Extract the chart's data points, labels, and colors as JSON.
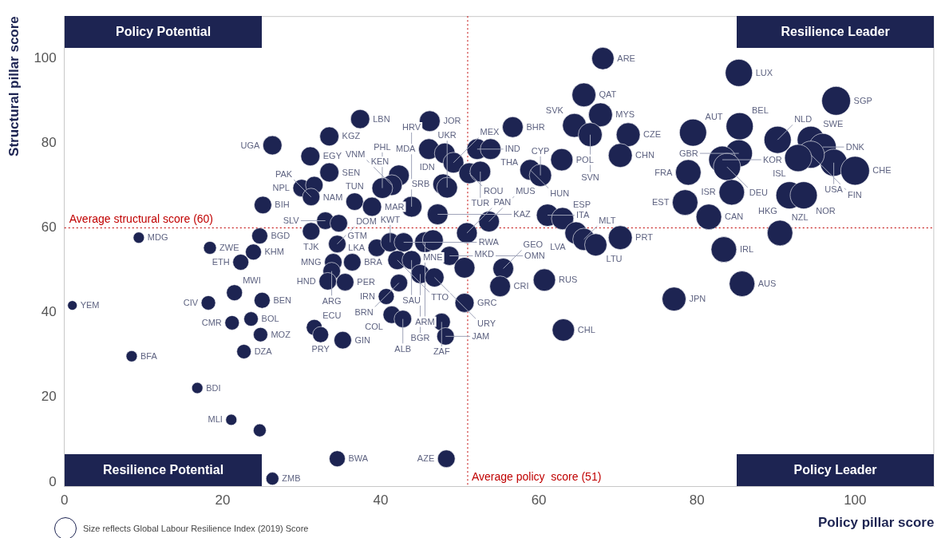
{
  "chart_data": {
    "type": "bubble",
    "xlabel": "Policy pillar score",
    "ylabel": "Structural pillar score",
    "xlim": [
      0,
      110
    ],
    "ylim": [
      -1,
      110
    ],
    "xticks": [
      0,
      20,
      40,
      60,
      80,
      100
    ],
    "yticks": [
      0,
      20,
      40,
      60,
      80,
      100
    ],
    "grid": false,
    "ref_lines": [
      {
        "axis": "y",
        "value": 60,
        "label": "Average structural score (60)",
        "color": "#c00000",
        "line_style": "dotted"
      },
      {
        "axis": "x",
        "value": 51,
        "label": "Average policy  score (51)",
        "color": "#c00000",
        "line_style": "dotted"
      }
    ],
    "series": [
      {
        "color": "#1d2452",
        "x": [
          1.0,
          9.4,
          8.5,
          16.8,
          21.1,
          24.7,
          26.3,
          18.4,
          24.7,
          23.9,
          22.3,
          25.1,
          26.3,
          21.5,
          18.2,
          25.0,
          21.2,
          23.6,
          24.8,
          22.7,
          33.5,
          31.1,
          33.5,
          30.0,
          31.6,
          31.2,
          36.7,
          37.4,
          33.0,
          34.7,
          31.2,
          34.5,
          34.0,
          33.8,
          36.4,
          33.3,
          35.5,
          39.5,
          41.2,
          42.9,
          42.1,
          43.9,
          45.0,
          46.8,
          42.3,
          40.7,
          41.4,
          42.8,
          31.6,
          32.4,
          35.2,
          34.5,
          48.3,
          47.7,
          48.2,
          50.6,
          48.7,
          50.6,
          55.5,
          55.1,
          60.7,
          63.1,
          46.2,
          46.1,
          48.1,
          49.2,
          52.2,
          53.9,
          51.2,
          52.6,
          47.9,
          48.4,
          42.3,
          41.4,
          40.2,
          38.9,
          43.9,
          47.2,
          45.6,
          46.6,
          50.9,
          53.7,
          56.7,
          58.9,
          60.2,
          61.1,
          63.0,
          64.7,
          65.7,
          67.2,
          70.3,
          62.9,
          64.5,
          65.7,
          67.8,
          66.5,
          71.3,
          70.3,
          68.1,
          85.3,
          97.6,
          85.4,
          79.5,
          90.2,
          94.4,
          95.9,
          97.3,
          94.4,
          92.8,
          100.0,
          85.3,
          83.2,
          83.8,
          78.9,
          78.5,
          81.5,
          84.4,
          91.7,
          93.5,
          90.5,
          83.4,
          85.7,
          77.1
        ],
        "values": [
          41.7,
          57.7,
          29.7,
          22.2,
          14.7,
          12.2,
          0.8,
          55.3,
          58.1,
          54.3,
          51.9,
          65.4,
          79.5,
          44.7,
          42.3,
          42.9,
          37.6,
          38.5,
          34.8,
          30.8,
          81.6,
          76.9,
          73.1,
          69.4,
          70.1,
          67.3,
          66.2,
          85.7,
          61.7,
          61.1,
          59.2,
          56.2,
          51.9,
          49.8,
          51.9,
          47.4,
          47.2,
          55.3,
          56.6,
          56.6,
          52.4,
          52.4,
          49.1,
          48.3,
          47.0,
          43.8,
          39.5,
          38.5,
          36.5,
          34.8,
          33.5,
          5.5,
          5.5,
          37.8,
          34.4,
          42.3,
          53.4,
          50.6,
          50.4,
          46.2,
          47.7,
          35.9,
          85.2,
          78.6,
          77.6,
          75.4,
          78.6,
          78.6,
          72.9,
          73.3,
          70.3,
          69.5,
          72.4,
          70.1,
          69.4,
          65.0,
          65.0,
          63.2,
          56.6,
          57.1,
          58.8,
          61.5,
          83.8,
          73.7,
          72.4,
          63.0,
          62.2,
          58.8,
          57.3,
          56.0,
          57.7,
          76.1,
          84.2,
          91.4,
          86.7,
          82.0,
          82.0,
          77.1,
          100.0,
          96.6,
          90.0,
          84.0,
          82.5,
          80.8,
          80.8,
          79.1,
          75.4,
          77.3,
          76.5,
          73.5,
          77.6,
          76.1,
          74.4,
          73.1,
          66.0,
          62.6,
          68.4,
          67.7,
          67.7,
          58.8,
          54.9,
          46.8,
          43.2
        ],
        "sizes": [
          0.11,
          0.15,
          0.15,
          0.15,
          0.15,
          0.2,
          0.2,
          0.2,
          0.31,
          0.31,
          0.31,
          0.37,
          0.44,
          0.31,
          0.25,
          0.31,
          0.25,
          0.25,
          0.25,
          0.25,
          0.44,
          0.44,
          0.44,
          0.37,
          0.37,
          0.37,
          0.37,
          0.44,
          0.37,
          0.37,
          0.37,
          0.37,
          0.37,
          0.37,
          0.37,
          0.37,
          0.37,
          0.37,
          0.44,
          0.44,
          0.44,
          0.44,
          0.44,
          0.44,
          0.37,
          0.31,
          0.37,
          0.37,
          0.31,
          0.31,
          0.37,
          0.31,
          0.37,
          0.37,
          0.37,
          0.44,
          0.44,
          0.52,
          0.52,
          0.52,
          0.6,
          0.6,
          0.52,
          0.52,
          0.52,
          0.52,
          0.52,
          0.52,
          0.52,
          0.52,
          0.52,
          0.52,
          0.52,
          0.52,
          0.52,
          0.44,
          0.52,
          0.52,
          0.52,
          0.52,
          0.52,
          0.52,
          0.52,
          0.52,
          0.6,
          0.6,
          0.6,
          0.6,
          0.6,
          0.6,
          0.69,
          0.6,
          0.69,
          0.69,
          0.69,
          0.69,
          0.69,
          0.69,
          0.6,
          0.89,
          1,
          0.89,
          0.89,
          0.89,
          0.89,
          0.89,
          0.89,
          0.89,
          0.89,
          1,
          0.89,
          0.89,
          0.89,
          0.79,
          0.79,
          0.79,
          0.79,
          0.89,
          0.89,
          0.79,
          0.79,
          0.79,
          0.69
        ]
      }
    ],
    "annotations": [
      "Policy Potential",
      "Resilience Leader",
      "Resilience Potential",
      "Policy Leader",
      "Size reflects Global Labour Resilience Index (2019) Score",
      {
        "text": "YEM",
        "x": 1.0,
        "y": 41.7
      },
      {
        "text": "MDG",
        "x": 9.4,
        "y": 57.7
      },
      {
        "text": "BFA",
        "x": 8.5,
        "y": 29.7
      },
      {
        "text": "BDI",
        "x": 16.8,
        "y": 22.2
      },
      {
        "text": "MLI",
        "x": 21.1,
        "y": 14.7
      },
      {
        "text": "ZMB",
        "x": 26.3,
        "y": 0.8
      },
      {
        "text": "ZWE",
        "x": 18.4,
        "y": 55.3
      },
      {
        "text": "BGD",
        "x": 24.7,
        "y": 58.1
      },
      {
        "text": "KHM",
        "x": 23.9,
        "y": 54.3
      },
      {
        "text": "ETH",
        "x": 22.3,
        "y": 51.9
      },
      {
        "text": "BIH",
        "x": 25.1,
        "y": 65.4
      },
      {
        "text": "UGA",
        "x": 26.3,
        "y": 79.5
      },
      {
        "text": "MWI",
        "x": 21.5,
        "y": 44.7
      },
      {
        "text": "CIV",
        "x": 18.2,
        "y": 42.3
      },
      {
        "text": "BEN",
        "x": 25.0,
        "y": 42.9
      },
      {
        "text": "CMR",
        "x": 21.2,
        "y": 37.6
      },
      {
        "text": "BOL",
        "x": 23.6,
        "y": 38.5
      },
      {
        "text": "MOZ",
        "x": 24.8,
        "y": 34.8
      },
      {
        "text": "DZA",
        "x": 22.7,
        "y": 30.8
      },
      {
        "text": "KGZ",
        "x": 33.5,
        "y": 81.6
      },
      {
        "text": "EGY",
        "x": 31.1,
        "y": 76.9
      },
      {
        "text": "SEN",
        "x": 33.5,
        "y": 73.1
      },
      {
        "text": "NPL",
        "x": 30.0,
        "y": 69.4
      },
      {
        "text": "NAM",
        "x": 31.6,
        "y": 70.1
      },
      {
        "text": "PAK",
        "x": 31.2,
        "y": 67.3
      },
      {
        "text": "TUN",
        "x": 36.7,
        "y": 66.2
      },
      {
        "text": "LBN",
        "x": 37.4,
        "y": 85.7
      },
      {
        "text": "SLV",
        "x": 33.0,
        "y": 61.7
      },
      {
        "text": "GTM",
        "x": 34.7,
        "y": 61.1
      },
      {
        "text": "TJK",
        "x": 31.2,
        "y": 59.2
      },
      {
        "text": "DOM",
        "x": 34.5,
        "y": 56.2
      },
      {
        "text": "MNG",
        "x": 34.0,
        "y": 51.9
      },
      {
        "text": "ARG",
        "x": 33.8,
        "y": 49.8
      },
      {
        "text": "BRA",
        "x": 36.4,
        "y": 51.9
      },
      {
        "text": "HND",
        "x": 33.3,
        "y": 47.4
      },
      {
        "text": "PER",
        "x": 35.5,
        "y": 47.2
      },
      {
        "text": "LKA",
        "x": 39.5,
        "y": 55.3
      },
      {
        "text": "KWT",
        "x": 41.2,
        "y": 56.6
      },
      {
        "text": "RWA",
        "x": 42.9,
        "y": 56.6
      },
      {
        "text": "TTO",
        "x": 42.1,
        "y": 52.4
      },
      {
        "text": "SAU",
        "x": 43.9,
        "y": 52.4
      },
      {
        "text": "BGR",
        "x": 45.0,
        "y": 49.1
      },
      {
        "text": "URY",
        "x": 46.8,
        "y": 48.3
      },
      {
        "text": "BRN",
        "x": 42.3,
        "y": 47.0
      },
      {
        "text": "IRN",
        "x": 40.7,
        "y": 43.8
      },
      {
        "text": "COL",
        "x": 41.4,
        "y": 39.5
      },
      {
        "text": "ALB",
        "x": 42.8,
        "y": 38.5
      },
      {
        "text": "ECU",
        "x": 31.6,
        "y": 36.5
      },
      {
        "text": "PRY",
        "x": 32.4,
        "y": 34.8
      },
      {
        "text": "GIN",
        "x": 35.2,
        "y": 33.5
      },
      {
        "text": "BWA",
        "x": 34.5,
        "y": 5.5
      },
      {
        "text": "AZE",
        "x": 48.3,
        "y": 5.5
      },
      {
        "text": "ZAF",
        "x": 47.7,
        "y": 37.8
      },
      {
        "text": "JAM",
        "x": 48.2,
        "y": 34.4
      },
      {
        "text": "GRC",
        "x": 50.6,
        "y": 42.3
      },
      {
        "text": "OMN",
        "x": 48.7,
        "y": 53.4
      },
      {
        "text": "MKD",
        "x": 50.6,
        "y": 50.6
      },
      {
        "text": "GEO",
        "x": 55.5,
        "y": 50.4
      },
      {
        "text": "CRI",
        "x": 55.1,
        "y": 46.2
      },
      {
        "text": "RUS",
        "x": 60.7,
        "y": 47.7
      },
      {
        "text": "CHL",
        "x": 63.1,
        "y": 35.9
      },
      {
        "text": "JOR",
        "x": 46.2,
        "y": 85.2
      },
      {
        "text": "MDA",
        "x": 46.1,
        "y": 78.6
      },
      {
        "text": "IDN",
        "x": 48.1,
        "y": 77.6
      },
      {
        "text": "MEX",
        "x": 49.2,
        "y": 75.4
      },
      {
        "text": "IND",
        "x": 52.2,
        "y": 78.6
      },
      {
        "text": "THA",
        "x": 53.9,
        "y": 78.6
      },
      {
        "text": "ROU",
        "x": 51.2,
        "y": 72.9
      },
      {
        "text": "TUR",
        "x": 52.6,
        "y": 73.3
      },
      {
        "text": "SRB",
        "x": 47.9,
        "y": 70.3
      },
      {
        "text": "UKR",
        "x": 48.4,
        "y": 69.5
      },
      {
        "text": "KEN",
        "x": 42.3,
        "y": 72.4
      },
      {
        "text": "VNM",
        "x": 41.4,
        "y": 70.1
      },
      {
        "text": "PHL",
        "x": 40.2,
        "y": 69.4
      },
      {
        "text": "MAR",
        "x": 38.9,
        "y": 65.0
      },
      {
        "text": "HRV",
        "x": 43.9,
        "y": 65.0
      },
      {
        "text": "KAZ",
        "x": 47.2,
        "y": 63.2
      },
      {
        "text": "ARM",
        "x": 45.6,
        "y": 56.6
      },
      {
        "text": "MNE",
        "x": 46.6,
        "y": 57.1
      },
      {
        "text": "PAN",
        "x": 50.9,
        "y": 58.8
      },
      {
        "text": "MUS",
        "x": 53.7,
        "y": 61.5
      },
      {
        "text": "BHR",
        "x": 56.7,
        "y": 83.8
      },
      {
        "text": "HUN",
        "x": 58.9,
        "y": 73.7
      },
      {
        "text": "CYP",
        "x": 60.2,
        "y": 72.4
      },
      {
        "text": "ITA",
        "x": 61.1,
        "y": 63.0
      },
      {
        "text": "ESP",
        "x": 63.0,
        "y": 62.2
      },
      {
        "text": "LVA",
        "x": 64.7,
        "y": 58.8
      },
      {
        "text": "MLT",
        "x": 65.7,
        "y": 57.3
      },
      {
        "text": "LTU",
        "x": 67.2,
        "y": 56.0
      },
      {
        "text": "PRT",
        "x": 70.3,
        "y": 57.7
      },
      {
        "text": "POL",
        "x": 62.9,
        "y": 76.1
      },
      {
        "text": "SVK",
        "x": 64.5,
        "y": 84.2
      },
      {
        "text": "QAT",
        "x": 65.7,
        "y": 91.4
      },
      {
        "text": "MYS",
        "x": 67.8,
        "y": 86.7
      },
      {
        "text": "SVN",
        "x": 66.5,
        "y": 82.0
      },
      {
        "text": "CZE",
        "x": 71.3,
        "y": 82.0
      },
      {
        "text": "CHN",
        "x": 70.3,
        "y": 77.1
      },
      {
        "text": "ARE",
        "x": 68.1,
        "y": 100.0
      },
      {
        "text": "LUX",
        "x": 85.3,
        "y": 96.6
      },
      {
        "text": "SGP",
        "x": 97.6,
        "y": 90.0
      },
      {
        "text": "BEL",
        "x": 85.4,
        "y": 84.0
      },
      {
        "text": "AUT",
        "x": 79.5,
        "y": 82.5
      },
      {
        "text": "NLD",
        "x": 90.2,
        "y": 80.8
      },
      {
        "text": "SWE",
        "x": 94.4,
        "y": 80.8
      },
      {
        "text": "DNK",
        "x": 95.9,
        "y": 79.1
      },
      {
        "text": "USA",
        "x": 97.3,
        "y": 75.4
      },
      {
        "text": "FIN",
        "x": 94.4,
        "y": 77.3
      },
      {
        "text": "ISL",
        "x": 92.8,
        "y": 76.5
      },
      {
        "text": "CHE",
        "x": 100.0,
        "y": 73.5
      },
      {
        "text": "GBR",
        "x": 85.3,
        "y": 77.6
      },
      {
        "text": "KOR",
        "x": 83.2,
        "y": 76.1
      },
      {
        "text": "DEU",
        "x": 83.8,
        "y": 74.4
      },
      {
        "text": "FRA",
        "x": 78.9,
        "y": 73.1
      },
      {
        "text": "EST",
        "x": 78.5,
        "y": 66.0
      },
      {
        "text": "CAN",
        "x": 81.5,
        "y": 62.6
      },
      {
        "text": "ISR",
        "x": 84.4,
        "y": 68.4
      },
      {
        "text": "HKG",
        "x": 91.7,
        "y": 67.7
      },
      {
        "text": "NOR",
        "x": 93.5,
        "y": 67.7
      },
      {
        "text": "NZL",
        "x": 90.5,
        "y": 58.8
      },
      {
        "text": "IRL",
        "x": 83.4,
        "y": 54.9
      },
      {
        "text": "AUS",
        "x": 85.7,
        "y": 46.8
      },
      {
        "text": "JPN",
        "x": 77.1,
        "y": 43.2
      }
    ]
  }
}
